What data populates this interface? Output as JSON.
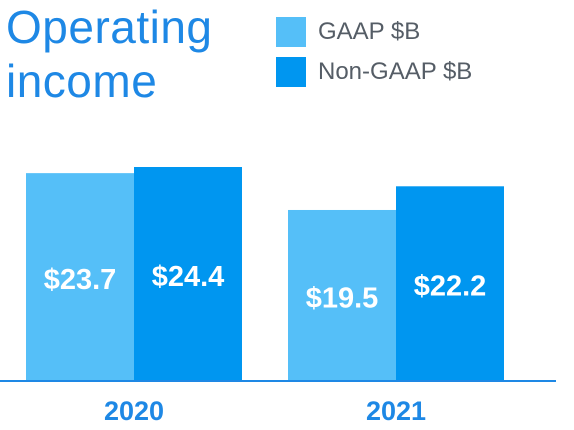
{
  "colors": {
    "title": "#1e88e5",
    "gaap": "#55bff8",
    "non_gaap": "#0096f0",
    "axis": "#1e88e5",
    "tick": "#1e88e5",
    "legend_text": "#555d66"
  },
  "chart_data": {
    "type": "bar",
    "title": "Operating income",
    "title_lines": [
      "Operating",
      "income"
    ],
    "categories": [
      "2020",
      "2021"
    ],
    "series": [
      {
        "name": "GAAP $B",
        "values": [
          23.7,
          19.5
        ],
        "labels": [
          "$23.7",
          "$19.5"
        ],
        "color": "#55bff8"
      },
      {
        "name": "Non-GAAP $B",
        "values": [
          24.4,
          22.2
        ],
        "labels": [
          "$24.4",
          "$22.2"
        ],
        "color": "#0096f0"
      }
    ],
    "ylim": [
      0,
      24.4
    ],
    "grid": false,
    "legend": "top-right"
  }
}
